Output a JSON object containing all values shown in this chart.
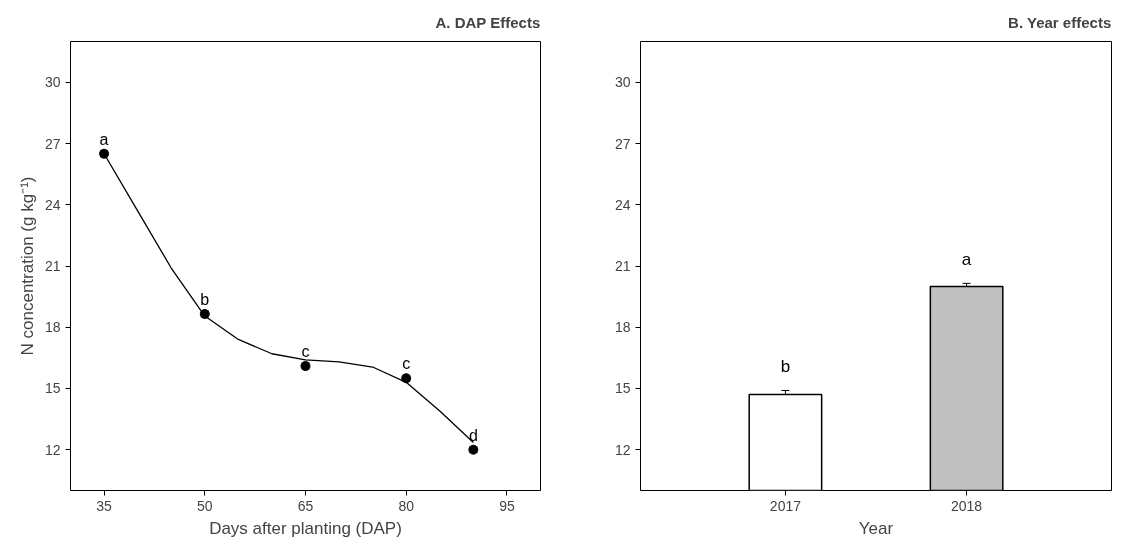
{
  "chart_data": [
    {
      "type": "scatter",
      "title": "A. DAP Effects",
      "xlabel": "Days after planting (DAP)",
      "ylabel": "N concentration (g kg⁻¹)",
      "x": [
        35,
        50,
        65,
        80,
        90
      ],
      "xlim": [
        30,
        100
      ],
      "xticks": [
        35,
        50,
        65,
        80,
        95
      ],
      "ylim": [
        10,
        32
      ],
      "yticks": [
        12,
        15,
        18,
        21,
        24,
        27,
        30
      ],
      "grid": false,
      "marker": "circle",
      "series": [
        {
          "color": "#000000",
          "values": [
            26.5,
            18.65,
            16.1,
            15.5,
            12.0
          ],
          "errors": [
            0.15,
            0.15,
            0.15,
            0.15,
            0.15
          ]
        },
        {
          "type": "line",
          "marker": "none",
          "color": "#000000",
          "x": [
            35,
            40,
            45,
            50,
            55,
            60,
            65,
            70,
            75,
            80,
            85,
            90
          ],
          "values": [
            26.5,
            23.7,
            20.9,
            18.55,
            17.4,
            16.7,
            16.4,
            16.3,
            16.05,
            15.3,
            13.9,
            12.35
          ]
        }
      ],
      "annotations": [
        {
          "text": "a",
          "x": 35,
          "y": 26.8
        },
        {
          "text": "b",
          "x": 50,
          "y": 18.95
        },
        {
          "text": "c",
          "x": 65,
          "y": 16.4
        },
        {
          "text": "c",
          "x": 80,
          "y": 15.8
        },
        {
          "text": "d",
          "x": 90,
          "y": 12.3
        }
      ]
    },
    {
      "type": "bar",
      "title": "B. Year effects",
      "xlabel": "Year",
      "categories": [
        "2017",
        "2018"
      ],
      "ylim": [
        10,
        32
      ],
      "yticks": [
        12,
        15,
        18,
        21,
        24,
        27,
        30
      ],
      "grid": false,
      "values": [
        14.7,
        20.0
      ],
      "errors": [
        0.2,
        0.15
      ],
      "colors": [
        "#ffffff",
        "#c0c0c0"
      ],
      "annotations": [
        "b",
        "a"
      ]
    }
  ]
}
